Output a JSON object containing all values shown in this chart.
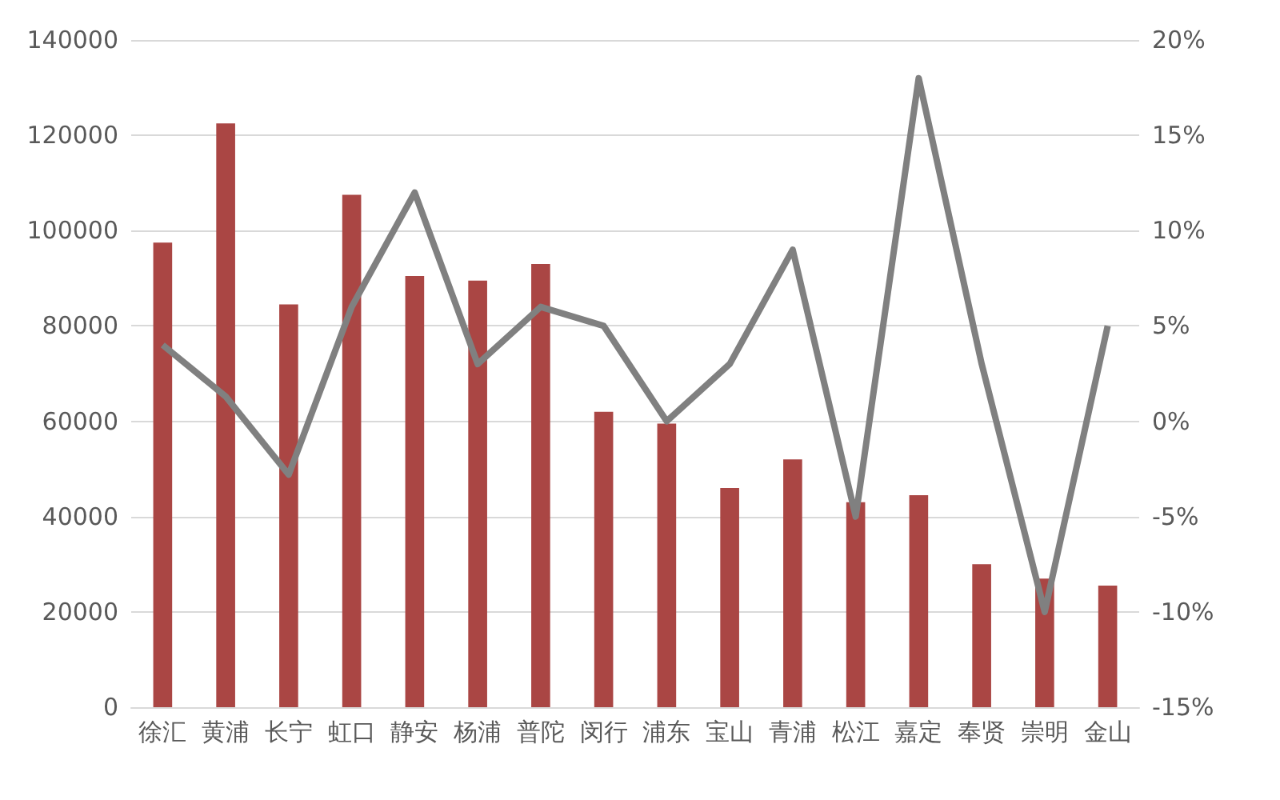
{
  "chart_data": {
    "type": "bar",
    "categories": [
      "徐汇",
      "黄浦",
      "长宁",
      "虹口",
      "静安",
      "杨浦",
      "普陀",
      "闵行",
      "浦东",
      "宝山",
      "青浦",
      "松江",
      "嘉定",
      "奉贤",
      "崇明",
      "金山"
    ],
    "series": [
      {
        "color": "#aa4644",
        "values": [
          97500,
          122500,
          84500,
          107500,
          90500,
          89500,
          93000,
          62000,
          59500,
          46000,
          52000,
          43000,
          44500,
          30000,
          27000,
          25500
        ]
      },
      {
        "type": "line",
        "axis": "y2",
        "color": "#808080",
        "marker": "none",
        "values": [
          4,
          1.3,
          -2.8,
          6,
          12,
          3,
          6,
          5,
          0,
          3,
          9,
          -5,
          18,
          3,
          -10,
          5
        ]
      }
    ],
    "ylim": [
      0,
      140000
    ],
    "yticks": [
      0,
      20000,
      40000,
      60000,
      80000,
      100000,
      120000,
      140000
    ],
    "y2lim": [
      -15,
      20
    ],
    "y2ticks": [
      {
        "value": -15,
        "label": "-15%"
      },
      {
        "value": -10,
        "label": "-10%"
      },
      {
        "value": -5,
        "label": "-5%"
      },
      {
        "value": 0,
        "label": "0%"
      },
      {
        "value": 5,
        "label": "5%"
      },
      {
        "value": 10,
        "label": "10%"
      },
      {
        "value": 15,
        "label": "15%"
      },
      {
        "value": 20,
        "label": "20%"
      }
    ],
    "grid": "y"
  }
}
